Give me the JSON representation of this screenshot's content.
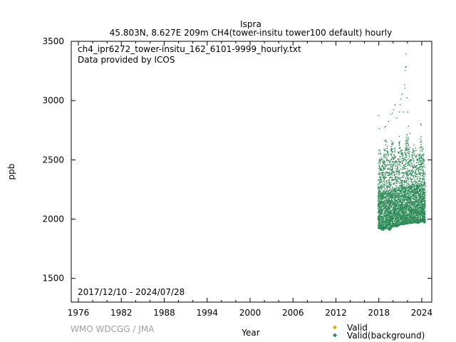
{
  "title_line1": "Ispra",
  "title_line2": "45.803N, 8.627E 209m    CH4(tower-insitu tower100 default) hourly",
  "file_label": "ch4_ipr6272_tower-insitu_162_6101-9999_hourly.txt",
  "provider_label": "Data provided by ICOS",
  "period_label": "2017/12/10 - 2024/07/28",
  "credit": "WMO WDCGG / JMA",
  "colors": {
    "valid": "#d4b000",
    "background": "#2e8b57",
    "axis": "#000000"
  },
  "chart_data": {
    "type": "scatter",
    "xlabel": "Year",
    "ylabel": "ppb",
    "xlim": [
      1975.0,
      2025.4
    ],
    "ylim": [
      1300,
      3500
    ],
    "x_ticks": [
      "1976",
      "1982",
      "1988",
      "1994",
      "2000",
      "2006",
      "2012",
      "2018",
      "2024"
    ],
    "y_ticks": [
      "1500",
      "2000",
      "2500",
      "3000",
      "3500"
    ],
    "grid": false,
    "legend_position": "bottom-right",
    "series": [
      {
        "name": "Valid",
        "marker": "diamond",
        "color": "#d4b000",
        "points": []
      },
      {
        "name": "Valid(background)",
        "marker": "diamond",
        "color": "#2e8b57",
        "date_range": [
          "2017-12-10",
          "2024-07-28"
        ],
        "envelope": [
          {
            "x": 2017.95,
            "low": 1920,
            "high": 2620
          },
          {
            "x": 2018.3,
            "low": 1915,
            "high": 2560
          },
          {
            "x": 2018.6,
            "low": 1900,
            "high": 2500
          },
          {
            "x": 2018.9,
            "low": 1910,
            "high": 2690
          },
          {
            "x": 2019.2,
            "low": 1920,
            "high": 2650
          },
          {
            "x": 2019.6,
            "low": 1900,
            "high": 2480
          },
          {
            "x": 2019.9,
            "low": 1925,
            "high": 2700
          },
          {
            "x": 2020.2,
            "low": 1935,
            "high": 2660
          },
          {
            "x": 2020.6,
            "low": 1930,
            "high": 2470
          },
          {
            "x": 2020.9,
            "low": 1940,
            "high": 2700
          },
          {
            "x": 2021.2,
            "low": 1950,
            "high": 2600
          },
          {
            "x": 2021.6,
            "low": 1950,
            "high": 2500
          },
          {
            "x": 2021.9,
            "low": 1955,
            "high": 2740
          },
          {
            "x": 2022.2,
            "low": 1960,
            "high": 2680
          },
          {
            "x": 2022.6,
            "low": 1960,
            "high": 2500
          },
          {
            "x": 2022.9,
            "low": 1965,
            "high": 2640
          },
          {
            "x": 2023.2,
            "low": 1965,
            "high": 2600
          },
          {
            "x": 2023.6,
            "low": 1960,
            "high": 2490
          },
          {
            "x": 2023.9,
            "low": 1970,
            "high": 2720
          },
          {
            "x": 2024.2,
            "low": 1975,
            "high": 2640
          },
          {
            "x": 2024.57,
            "low": 1960,
            "high": 2420
          }
        ],
        "outliers": [
          {
            "x": 2018.05,
            "y": 2870
          },
          {
            "x": 2018.15,
            "y": 2760
          },
          {
            "x": 2018.9,
            "y": 2770
          },
          {
            "x": 2019.05,
            "y": 2780
          },
          {
            "x": 2019.4,
            "y": 2820
          },
          {
            "x": 2019.7,
            "y": 2880
          },
          {
            "x": 2019.95,
            "y": 2890
          },
          {
            "x": 2020.15,
            "y": 2920
          },
          {
            "x": 2020.3,
            "y": 2960
          },
          {
            "x": 2020.55,
            "y": 2850
          },
          {
            "x": 2020.95,
            "y": 2900
          },
          {
            "x": 2021.05,
            "y": 2960
          },
          {
            "x": 2021.15,
            "y": 3010
          },
          {
            "x": 2021.3,
            "y": 3050
          },
          {
            "x": 2021.5,
            "y": 2900
          },
          {
            "x": 2021.65,
            "y": 3130
          },
          {
            "x": 2021.7,
            "y": 3100
          },
          {
            "x": 2021.75,
            "y": 3250
          },
          {
            "x": 2021.8,
            "y": 3280
          },
          {
            "x": 2021.85,
            "y": 3390
          },
          {
            "x": 2021.9,
            "y": 3280
          },
          {
            "x": 2022.0,
            "y": 3020
          },
          {
            "x": 2022.1,
            "y": 2900
          },
          {
            "x": 2022.2,
            "y": 2780
          },
          {
            "x": 2022.4,
            "y": 2720
          },
          {
            "x": 2023.9,
            "y": 2800
          },
          {
            "x": 2024.0,
            "y": 2790
          }
        ]
      }
    ]
  }
}
